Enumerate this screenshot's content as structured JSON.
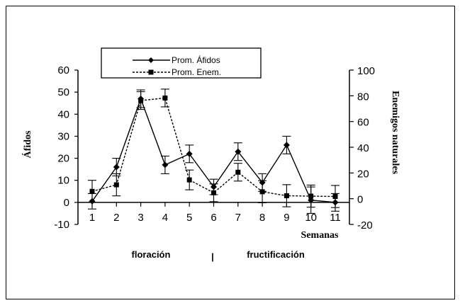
{
  "chart_data": {
    "type": "line",
    "x": [
      1,
      2,
      3,
      4,
      5,
      6,
      7,
      8,
      9,
      10,
      11
    ],
    "xlabel": "Semanas",
    "ylabel": "Áfidos",
    "y2label": "Enemigos naturales",
    "ylim": [
      -10,
      60
    ],
    "y2lim": [
      -20,
      100
    ],
    "yticks": [
      -10,
      0,
      10,
      20,
      30,
      40,
      50,
      60
    ],
    "y2ticks": [
      -20,
      0,
      20,
      40,
      60,
      80,
      100
    ],
    "grid": false,
    "legend_position": "top",
    "series": [
      {
        "name": "Prom. Áfidos",
        "axis": "left",
        "line_style": "solid",
        "marker": "diamond",
        "values": [
          0.5,
          16,
          47,
          17,
          22,
          7,
          23,
          9,
          26,
          1,
          0
        ],
        "error": [
          3.5,
          4,
          4,
          4,
          4,
          3.5,
          4,
          4,
          4,
          6,
          4
        ]
      },
      {
        "name": "Prom. Enem.",
        "axis": "right",
        "line_style": "dashed",
        "marker": "square",
        "values": [
          5.7,
          10.8,
          76.3,
          78.3,
          14.6,
          4.6,
          20.6,
          5.4,
          2.3,
          2.0,
          1.7
        ],
        "error": [
          8.6,
          8.6,
          6.9,
          6.9,
          7.7,
          6.9,
          6.9,
          8.6,
          8.6,
          8.6,
          8.6
        ]
      }
    ],
    "annotations": {
      "phase_left": "floración",
      "separator": "|",
      "phase_right": "fructificación"
    },
    "colors": {
      "line": "#000000",
      "background": "#ffffff"
    }
  }
}
